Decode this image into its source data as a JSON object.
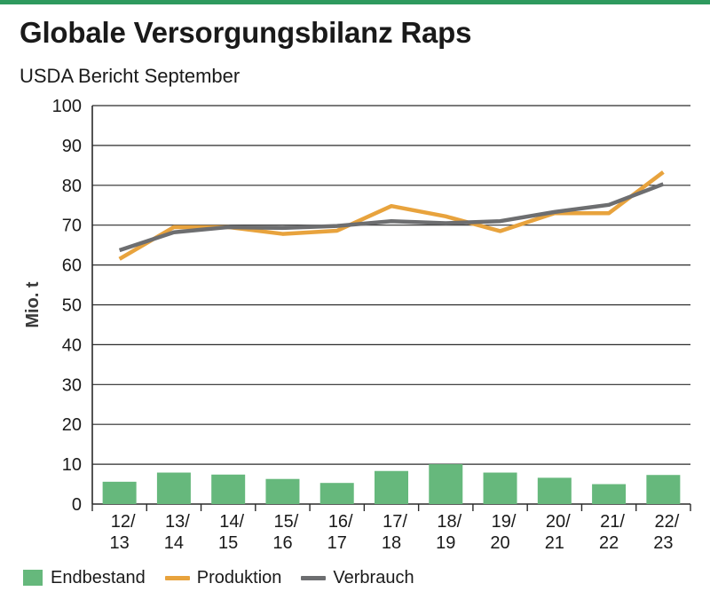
{
  "title": "Globale Versorgungsbilanz Raps",
  "subtitle": "USDA Bericht September",
  "colors": {
    "accent_bar": "#2e9a5e",
    "endbestand": "#66b87c",
    "produktion": "#e8a33d",
    "verbrauch": "#6d6e70",
    "grid": "#2a2a2a"
  },
  "chart_data": {
    "type": "bar+line",
    "ylabel": "Mio. t",
    "ylim": [
      0,
      100
    ],
    "yticks": [
      0,
      10,
      20,
      30,
      40,
      50,
      60,
      70,
      80,
      90,
      100
    ],
    "grid": true,
    "legend_position": "bottom",
    "categories": [
      [
        "12/",
        "13"
      ],
      [
        "13/",
        "14"
      ],
      [
        "14/",
        "15"
      ],
      [
        "15/",
        "16"
      ],
      [
        "16/",
        "17"
      ],
      [
        "17/",
        "18"
      ],
      [
        "18/",
        "19"
      ],
      [
        "19/",
        "20"
      ],
      [
        "20/",
        "21"
      ],
      [
        "21/",
        "22"
      ],
      [
        "22/",
        "23"
      ]
    ],
    "series": [
      {
        "name": "Endbestand",
        "kind": "bar",
        "values": [
          5.6,
          7.9,
          7.4,
          6.3,
          5.3,
          8.3,
          10.0,
          7.9,
          6.6,
          5.0,
          7.3
        ]
      },
      {
        "name": "Produktion",
        "kind": "line",
        "values": [
          61.5,
          69.5,
          69.5,
          67.8,
          68.6,
          74.8,
          72.2,
          68.5,
          73.0,
          73.0,
          83.3
        ]
      },
      {
        "name": "Verbrauch",
        "kind": "line",
        "values": [
          63.7,
          68.2,
          69.5,
          69.3,
          69.8,
          71.0,
          70.5,
          71.0,
          73.3,
          75.1,
          80.3
        ]
      }
    ]
  }
}
